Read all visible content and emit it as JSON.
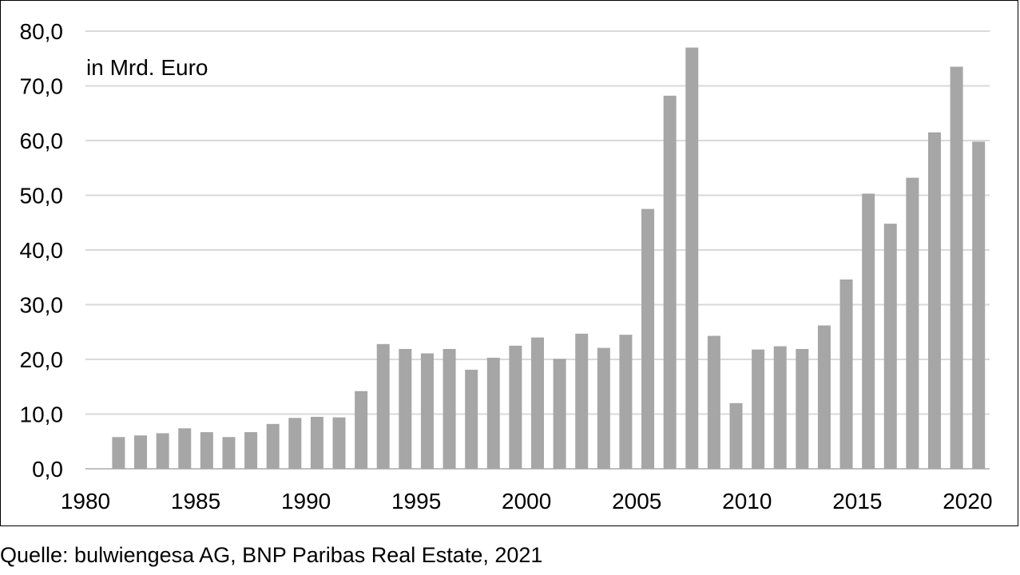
{
  "source_note": "Quelle: bulwiengesa AG, BNP Paribas Real Estate, 2021",
  "chart_data": {
    "type": "bar",
    "unit_label": "in Mrd. Euro",
    "title": "",
    "xlabel": "",
    "ylabel": "",
    "ylim": [
      0,
      80
    ],
    "yticks": [
      "0,0",
      "10,0",
      "20,0",
      "30,0",
      "40,0",
      "50,0",
      "60,0",
      "70,0",
      "80,0"
    ],
    "xtick_labels": [
      "1980",
      "1985",
      "1990",
      "1995",
      "2000",
      "2005",
      "2010",
      "2015",
      "2020"
    ],
    "grid": true,
    "bar_color": "#a6a6a6",
    "grid_color": "#d9d9d9",
    "categories": [
      1981,
      1982,
      1983,
      1984,
      1985,
      1986,
      1987,
      1988,
      1989,
      1990,
      1991,
      1992,
      1993,
      1994,
      1995,
      1996,
      1997,
      1998,
      1999,
      2000,
      2001,
      2002,
      2003,
      2004,
      2005,
      2006,
      2007,
      2008,
      2009,
      2010,
      2011,
      2012,
      2013,
      2014,
      2015,
      2016,
      2017,
      2018,
      2019,
      2020
    ],
    "values": [
      5.8,
      6.1,
      6.5,
      7.4,
      6.7,
      5.8,
      6.7,
      8.2,
      9.3,
      9.5,
      9.4,
      14.2,
      22.8,
      21.9,
      21.1,
      21.9,
      18.1,
      20.3,
      22.5,
      24.0,
      20.1,
      24.7,
      22.1,
      24.5,
      47.5,
      68.2,
      77.0,
      24.3,
      12.0,
      21.8,
      22.4,
      21.9,
      26.2,
      34.6,
      50.3,
      44.8,
      53.2,
      61.5,
      73.5,
      59.8
    ]
  }
}
